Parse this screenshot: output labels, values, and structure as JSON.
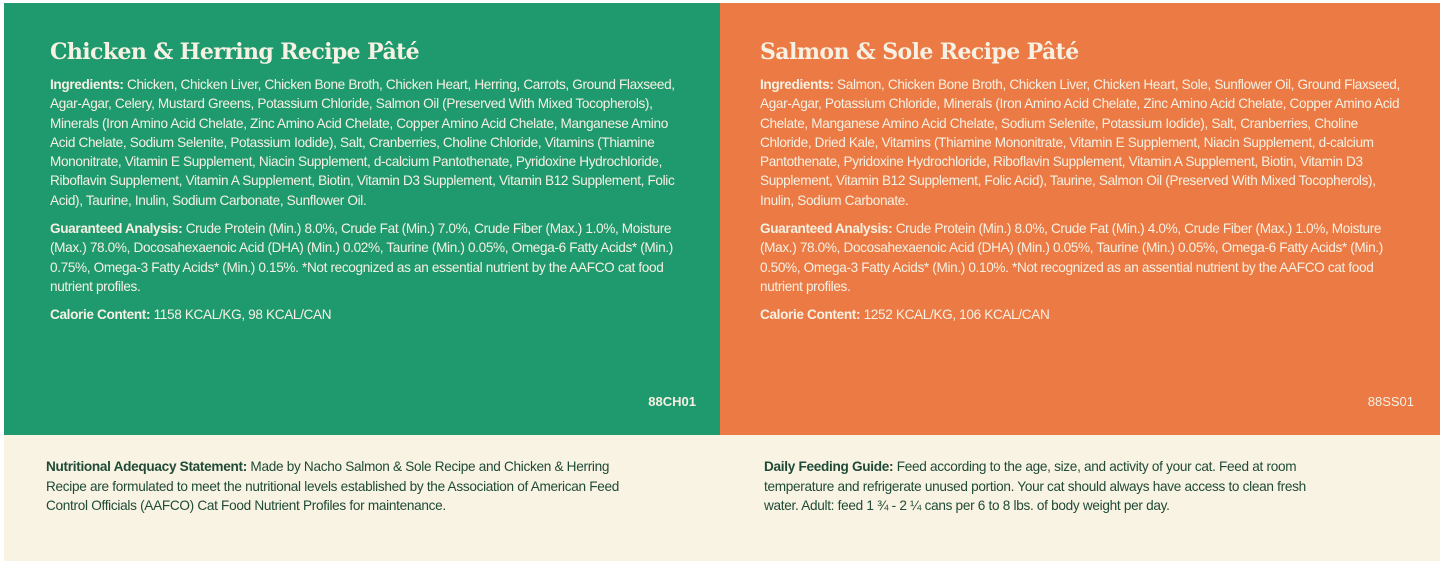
{
  "left": {
    "title": "Chicken & Herring Recipe Pâté",
    "ingredients_label": "Ingredients:",
    "ingredients": "Chicken, Chicken Liver, Chicken Bone Broth, Chicken Heart, Herring, Carrots, Ground Flaxseed, Agar-Agar, Celery, Mustard Greens, Potassium Chloride, Salmon Oil (Preserved With Mixed Tocopherols), Minerals (Iron Amino Acid Chelate, Zinc Amino Acid Chelate, Copper Amino Acid Chelate, Manganese Amino Acid Chelate, Sodium Selenite, Potassium Iodide), Salt, Cranberries, Choline Chloride, Vitamins (Thiamine Mononitrate, Vitamin E Supplement, Niacin Supplement, d-calcium Pantothenate, Pyridoxine Hydrochloride, Riboflavin Supplement, Vitamin A Supplement, Biotin, Vitamin D3 Supplement, Vitamin B12 Supplement, Folic Acid), Taurine, Inulin, Sodium Carbonate, Sunflower Oil.",
    "analysis_label": "Guaranteed Analysis:",
    "analysis": "Crude Protein (Min.) 8.0%, Crude Fat (Min.) 7.0%, Crude Fiber (Max.) 1.0%, Moisture (Max.) 78.0%, Docosahexaenoic Acid (DHA) (Min.) 0.02%, Taurine (Min.) 0.05%, Omega-6 Fatty Acids* (Min.) 0.75%, Omega-3 Fatty Acids* (Min.) 0.15%. *Not recognized as an essential nutrient by the AAFCO cat food nutrient profiles.",
    "calorie_label": "Calorie Content:",
    "calorie": "1158 KCAL/KG, 98 KCAL/CAN",
    "code": "88CH01"
  },
  "right": {
    "title": "Salmon & Sole Recipe Pâté",
    "ingredients_label": "Ingredients:",
    "ingredients": "Salmon, Chicken Bone Broth, Chicken Liver, Chicken Heart, Sole, Sunflower Oil, Ground Flaxseed, Agar-Agar, Potassium Chloride, Minerals (Iron Amino Acid Chelate, Zinc Amino Acid Chelate, Copper Amino Acid Chelate, Manganese Amino Acid Chelate, Sodium Selenite, Potassium Iodide), Salt, Cranberries, Choline Chloride, Dried Kale, Vitamins (Thiamine Mononitrate, Vitamin E Supplement, Niacin Supplement, d-calcium Pantothenate, Pyridoxine Hydrochloride, Riboflavin Supplement, Vitamin A Supplement, Biotin, Vitamin D3 Supplement, Vitamin B12 Supplement, Folic Acid), Taurine, Salmon Oil (Preserved With Mixed Tocopherols), Inulin, Sodium Carbonate.",
    "analysis_label": "Guaranteed Analysis:",
    "analysis": "Crude Protein (Min.) 8.0%, Crude Fat (Min.) 4.0%, Crude Fiber (Max.) 1.0%, Moisture (Max.) 78.0%, Docosahexaenoic Acid (DHA) (Min.) 0.05%, Taurine (Min.) 0.05%, Omega-6 Fatty Acids* (Min.) 0.50%, Omega-3 Fatty Acids* (Min.) 0.10%. *Not recognized as an assential nutrient by the AAFCO cat food nutrient profiles.",
    "calorie_label": "Calorie Content:",
    "calorie": "1252 KCAL/KG, 106 KCAL/CAN",
    "code": "88SS01"
  },
  "footer": {
    "adequacy_label": "Nutritional Adequacy Statement:",
    "adequacy": "Made by Nacho Salmon & Sole Recipe and Chicken & Herring Recipe are formulated to meet the nutritional levels established by the Association of American Feed Control Officials (AAFCO) Cat Food Nutrient Profiles for maintenance.",
    "feeding_label": "Daily Feeding Guide:",
    "feeding": "Feed according to the age, size, and activity of your cat. Feed at room temperature and refrigerate unused portion. Your cat should always have access to clean fresh water. Adult: feed 1 ¾ - 2 ¼ cans per 6 to 8 lbs. of body weight per day."
  },
  "colors": {
    "green": "#1f9a6e",
    "orange": "#ec7a45",
    "cream": "#f8f3e2",
    "text_dark": "#1f4a37",
    "text_light": "#f6f1e3"
  }
}
